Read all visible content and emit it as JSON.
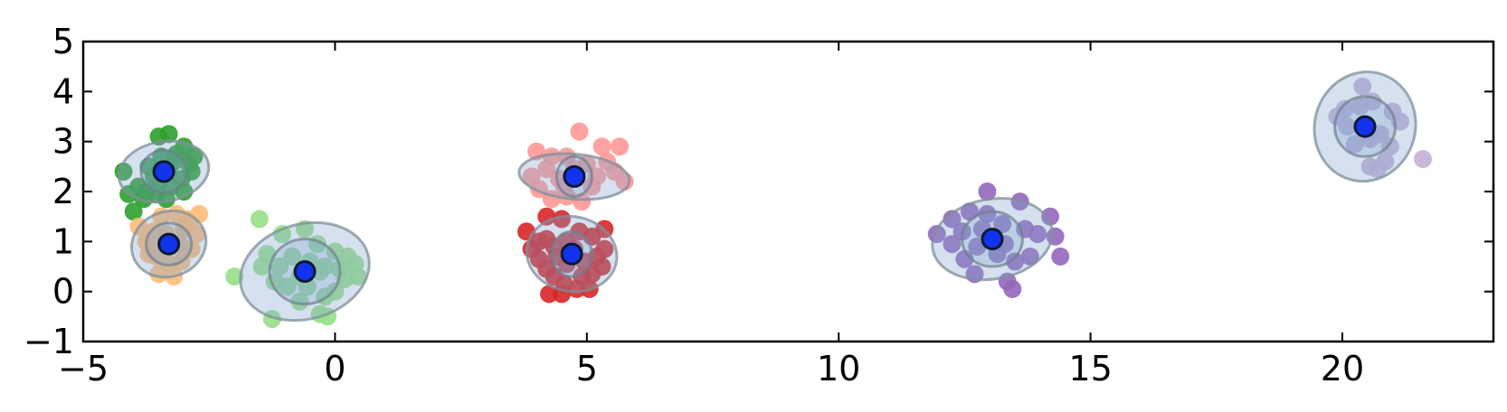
{
  "chart_data": {
    "type": "scatter",
    "xlim": [
      -5,
      23
    ],
    "ylim": [
      -1,
      5
    ],
    "xticks": [
      -5,
      0,
      5,
      10,
      15,
      20
    ],
    "yticks": [
      -1,
      0,
      1,
      2,
      3,
      4,
      5
    ],
    "xtick_labels": [
      "−5",
      "0",
      "5",
      "10",
      "15",
      "20"
    ],
    "ytick_labels": [
      "−1",
      "0",
      "1",
      "2",
      "3",
      "4",
      "5"
    ],
    "grid": false,
    "clusters": [
      {
        "color": "#2ca02c",
        "center": [
          -3.4,
          2.4
        ],
        "ellipse_inner": {
          "rx": 0.45,
          "ry": 0.42,
          "angle": 0
        },
        "ellipse_outer": {
          "rx": 0.9,
          "ry": 0.6,
          "angle": 10
        },
        "points": [
          [
            -3.5,
            3.1
          ],
          [
            -3.3,
            3.15
          ],
          [
            -3.0,
            2.9
          ],
          [
            -2.8,
            2.7
          ],
          [
            -2.85,
            2.4
          ],
          [
            -3.05,
            2.25
          ],
          [
            -4.2,
            2.4
          ],
          [
            -3.7,
            2.5
          ],
          [
            -3.9,
            2.1
          ],
          [
            -4.1,
            1.95
          ],
          [
            -3.8,
            1.85
          ],
          [
            -3.55,
            1.95
          ],
          [
            -3.35,
            1.85
          ],
          [
            -3.25,
            2.1
          ],
          [
            -3.2,
            2.6
          ],
          [
            -3.45,
            2.7
          ],
          [
            -3.6,
            2.3
          ],
          [
            -3.75,
            2.0
          ],
          [
            -4.0,
            1.6
          ],
          [
            -3.0,
            2.0
          ],
          [
            -2.9,
            2.55
          ],
          [
            -3.15,
            2.75
          ],
          [
            -3.3,
            2.45
          ],
          [
            -3.5,
            2.15
          ]
        ]
      },
      {
        "color": "#ffbb78",
        "center": [
          -3.3,
          0.95
        ],
        "ellipse_inner": {
          "rx": 0.45,
          "ry": 0.42,
          "angle": 0
        },
        "ellipse_outer": {
          "rx": 0.75,
          "ry": 0.65,
          "angle": 20
        },
        "points": [
          [
            -2.7,
            1.55
          ],
          [
            -2.95,
            1.45
          ],
          [
            -3.15,
            1.55
          ],
          [
            -3.45,
            1.5
          ],
          [
            -3.9,
            1.3
          ],
          [
            -3.75,
            1.0
          ],
          [
            -3.55,
            0.7
          ],
          [
            -3.3,
            0.55
          ],
          [
            -3.05,
            0.6
          ],
          [
            -2.85,
            0.85
          ],
          [
            -2.75,
            1.15
          ],
          [
            -3.2,
            0.3
          ],
          [
            -3.5,
            0.35
          ],
          [
            -3.6,
            1.2
          ],
          [
            -3.0,
            1.25
          ],
          [
            -3.35,
            1.15
          ],
          [
            -3.1,
            0.95
          ],
          [
            -3.55,
            0.95
          ],
          [
            -2.9,
            1.35
          ],
          [
            -3.7,
            0.75
          ]
        ]
      },
      {
        "color": "#98df8a",
        "center": [
          -0.6,
          0.4
        ],
        "ellipse_inner": {
          "rx": 0.7,
          "ry": 0.65,
          "angle": 0
        },
        "ellipse_outer": {
          "rx": 1.3,
          "ry": 0.95,
          "angle": 15
        },
        "points": [
          [
            -1.5,
            1.45
          ],
          [
            -1.05,
            1.15
          ],
          [
            -0.6,
            1.25
          ],
          [
            -0.35,
            0.95
          ],
          [
            0.0,
            0.8
          ],
          [
            0.25,
            0.7
          ],
          [
            0.4,
            0.55
          ],
          [
            0.45,
            0.3
          ],
          [
            0.2,
            0.25
          ],
          [
            0.0,
            0.0
          ],
          [
            -0.2,
            -0.1
          ],
          [
            -0.15,
            -0.5
          ],
          [
            -0.3,
            -0.45
          ],
          [
            -0.55,
            0.1
          ],
          [
            -0.7,
            0.3
          ],
          [
            -0.95,
            0.1
          ],
          [
            -1.2,
            0.2
          ],
          [
            -1.35,
            0.75
          ],
          [
            -1.45,
            0.5
          ],
          [
            -1.1,
            0.5
          ],
          [
            -0.85,
            0.7
          ],
          [
            -0.5,
            0.6
          ],
          [
            -0.3,
            0.4
          ],
          [
            -2.0,
            0.3
          ],
          [
            -1.25,
            -0.55
          ],
          [
            -0.7,
            -0.2
          ],
          [
            -0.2,
            0.5
          ],
          [
            0.1,
            0.45
          ]
        ]
      },
      {
        "color": "#ff9896",
        "center": [
          4.75,
          2.3
        ],
        "ellipse_inner": {
          "rx": 0.35,
          "ry": 0.4,
          "angle": 0
        },
        "ellipse_outer": {
          "rx": 1.1,
          "ry": 0.45,
          "angle": -5
        },
        "points": [
          [
            4.85,
            3.2
          ],
          [
            5.3,
            2.9
          ],
          [
            5.65,
            2.9
          ],
          [
            5.75,
            2.2
          ],
          [
            5.55,
            2.4
          ],
          [
            5.2,
            2.3
          ],
          [
            4.6,
            2.7
          ],
          [
            4.3,
            2.7
          ],
          [
            4.0,
            2.8
          ],
          [
            3.9,
            2.3
          ],
          [
            4.05,
            2.05
          ],
          [
            4.3,
            1.85
          ],
          [
            4.6,
            1.9
          ],
          [
            4.9,
            1.8
          ],
          [
            5.1,
            2.1
          ],
          [
            4.75,
            2.45
          ],
          [
            4.45,
            2.25
          ],
          [
            4.2,
            2.45
          ],
          [
            5.0,
            2.55
          ],
          [
            5.4,
            2.6
          ],
          [
            4.55,
            2.1
          ]
        ]
      },
      {
        "color": "#d62728",
        "center": [
          4.7,
          0.75
        ],
        "ellipse_inner": {
          "rx": 0.4,
          "ry": 0.45,
          "angle": 0
        },
        "ellipse_outer": {
          "rx": 0.9,
          "ry": 0.75,
          "angle": -10
        },
        "points": [
          [
            4.2,
            1.5
          ],
          [
            4.5,
            1.45
          ],
          [
            3.8,
            1.2
          ],
          [
            3.9,
            0.85
          ],
          [
            4.05,
            0.65
          ],
          [
            4.2,
            0.45
          ],
          [
            4.35,
            0.3
          ],
          [
            4.55,
            0.15
          ],
          [
            4.8,
            0.05
          ],
          [
            5.05,
            0.05
          ],
          [
            4.5,
            -0.05
          ],
          [
            4.25,
            -0.05
          ],
          [
            5.3,
            0.5
          ],
          [
            5.35,
            0.85
          ],
          [
            5.35,
            1.25
          ],
          [
            5.1,
            1.1
          ],
          [
            4.85,
            1.2
          ],
          [
            4.6,
            1.0
          ],
          [
            4.35,
            0.9
          ],
          [
            4.6,
            0.55
          ],
          [
            4.95,
            0.6
          ],
          [
            5.1,
            0.35
          ],
          [
            4.2,
            1.05
          ],
          [
            4.75,
            0.85
          ],
          [
            4.4,
            0.7
          ],
          [
            5.2,
            0.7
          ],
          [
            4.9,
            0.3
          ],
          [
            4.05,
            1.0
          ]
        ]
      },
      {
        "color": "#9467bd",
        "center": [
          13.05,
          1.05
        ],
        "ellipse_inner": {
          "rx": 0.6,
          "ry": 0.55,
          "angle": 0
        },
        "ellipse_outer": {
          "rx": 1.2,
          "ry": 0.8,
          "angle": 10
        },
        "points": [
          [
            12.95,
            2.0
          ],
          [
            13.6,
            1.8
          ],
          [
            14.2,
            1.5
          ],
          [
            14.3,
            1.1
          ],
          [
            14.4,
            0.7
          ],
          [
            13.8,
            0.7
          ],
          [
            13.5,
            0.6
          ],
          [
            13.35,
            0.2
          ],
          [
            13.45,
            0.05
          ],
          [
            12.7,
            0.35
          ],
          [
            12.5,
            0.65
          ],
          [
            12.25,
            0.95
          ],
          [
            11.95,
            1.15
          ],
          [
            12.25,
            1.45
          ],
          [
            12.6,
            1.6
          ],
          [
            12.95,
            1.55
          ],
          [
            13.25,
            1.35
          ],
          [
            12.85,
            1.25
          ],
          [
            13.3,
            0.95
          ],
          [
            12.75,
            0.9
          ],
          [
            13.95,
            1.15
          ],
          [
            12.45,
            1.2
          ],
          [
            13.15,
            0.75
          ],
          [
            13.7,
            1.25
          ]
        ]
      },
      {
        "color": "#c5b0d5",
        "center": [
          20.45,
          3.3
        ],
        "ellipse_inner": {
          "rx": 0.6,
          "ry": 0.6,
          "angle": 0
        },
        "ellipse_outer": {
          "rx": 1.0,
          "ry": 1.1,
          "angle": -15
        },
        "points": [
          [
            20.4,
            4.1
          ],
          [
            20.6,
            3.8
          ],
          [
            21.0,
            3.6
          ],
          [
            21.15,
            3.4
          ],
          [
            20.95,
            2.9
          ],
          [
            20.85,
            2.6
          ],
          [
            21.6,
            2.65
          ],
          [
            20.7,
            2.45
          ],
          [
            20.55,
            2.5
          ],
          [
            20.1,
            3.3
          ],
          [
            19.9,
            3.5
          ],
          [
            20.05,
            3.65
          ],
          [
            20.35,
            3.7
          ],
          [
            20.75,
            3.15
          ],
          [
            20.25,
            2.95
          ],
          [
            20.55,
            3.05
          ]
        ]
      }
    ]
  }
}
